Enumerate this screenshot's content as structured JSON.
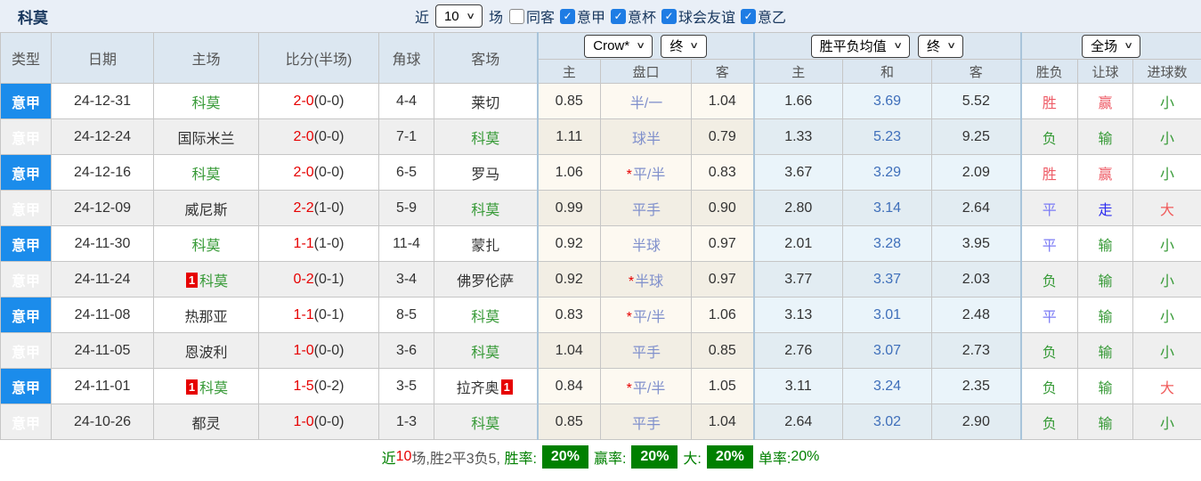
{
  "header": {
    "title": "科莫",
    "filter": {
      "near_label": "近",
      "matches_value": "10",
      "matches_suffix": "场",
      "checkboxes": [
        {
          "label": "同客",
          "checked": false
        },
        {
          "label": "意甲",
          "checked": true
        },
        {
          "label": "意杯",
          "checked": true
        },
        {
          "label": "球会友谊",
          "checked": true
        },
        {
          "label": "意乙",
          "checked": true
        }
      ]
    }
  },
  "table": {
    "columns": [
      "类型",
      "日期",
      "主场",
      "比分(半场)",
      "角球",
      "客场"
    ],
    "selects": {
      "company": "Crow*",
      "company_time": "终",
      "avg": "胜平负均值",
      "avg_time": "终",
      "scope": "全场"
    },
    "sub_headers": [
      "主",
      "盘口",
      "客",
      "主",
      "和",
      "客",
      "胜负",
      "让球",
      "进球数"
    ],
    "rows": [
      {
        "league": "意甲",
        "date": "24-12-31",
        "home": "科莫",
        "home_badge": "",
        "score": "2-0",
        "half": "(0-0)",
        "corners": "4-4",
        "away": "莱切",
        "away_badge": "",
        "crow_home": "0.85",
        "handicap_star": false,
        "handicap": "半/一",
        "crow_away": "1.04",
        "avg_home": "1.66",
        "avg_draw": "3.69",
        "avg_away": "5.52",
        "result": "胜",
        "handicap_result": "赢",
        "goals_result": "小"
      },
      {
        "league": "意甲",
        "date": "24-12-24",
        "home": "国际米兰",
        "home_badge": "",
        "score": "2-0",
        "half": "(0-0)",
        "corners": "7-1",
        "away": "科莫",
        "away_badge": "",
        "crow_home": "1.11",
        "handicap_star": false,
        "handicap": "球半",
        "crow_away": "0.79",
        "avg_home": "1.33",
        "avg_draw": "5.23",
        "avg_away": "9.25",
        "result": "负",
        "handicap_result": "输",
        "goals_result": "小"
      },
      {
        "league": "意甲",
        "date": "24-12-16",
        "home": "科莫",
        "home_badge": "",
        "score": "2-0",
        "half": "(0-0)",
        "corners": "6-5",
        "away": "罗马",
        "away_badge": "",
        "crow_home": "1.06",
        "handicap_star": true,
        "handicap": "平/半",
        "crow_away": "0.83",
        "avg_home": "3.67",
        "avg_draw": "3.29",
        "avg_away": "2.09",
        "result": "胜",
        "handicap_result": "赢",
        "goals_result": "小"
      },
      {
        "league": "意甲",
        "date": "24-12-09",
        "home": "威尼斯",
        "home_badge": "",
        "score": "2-2",
        "half": "(1-0)",
        "corners": "5-9",
        "away": "科莫",
        "away_badge": "",
        "crow_home": "0.99",
        "handicap_star": false,
        "handicap": "平手",
        "crow_away": "0.90",
        "avg_home": "2.80",
        "avg_draw": "3.14",
        "avg_away": "2.64",
        "result": "平",
        "handicap_result": "走",
        "goals_result": "大"
      },
      {
        "league": "意甲",
        "date": "24-11-30",
        "home": "科莫",
        "home_badge": "",
        "score": "1-1",
        "half": "(1-0)",
        "corners": "11-4",
        "away": "蒙扎",
        "away_badge": "",
        "crow_home": "0.92",
        "handicap_star": false,
        "handicap": "半球",
        "crow_away": "0.97",
        "avg_home": "2.01",
        "avg_draw": "3.28",
        "avg_away": "3.95",
        "result": "平",
        "handicap_result": "输",
        "goals_result": "小"
      },
      {
        "league": "意甲",
        "date": "24-11-24",
        "home": "科莫",
        "home_badge": "1",
        "score": "0-2",
        "half": "(0-1)",
        "corners": "3-4",
        "away": "佛罗伦萨",
        "away_badge": "",
        "crow_home": "0.92",
        "handicap_star": true,
        "handicap": "半球",
        "crow_away": "0.97",
        "avg_home": "3.77",
        "avg_draw": "3.37",
        "avg_away": "2.03",
        "result": "负",
        "handicap_result": "输",
        "goals_result": "小"
      },
      {
        "league": "意甲",
        "date": "24-11-08",
        "home": "热那亚",
        "home_badge": "",
        "score": "1-1",
        "half": "(0-1)",
        "corners": "8-5",
        "away": "科莫",
        "away_badge": "",
        "crow_home": "0.83",
        "handicap_star": true,
        "handicap": "平/半",
        "crow_away": "1.06",
        "avg_home": "3.13",
        "avg_draw": "3.01",
        "avg_away": "2.48",
        "result": "平",
        "handicap_result": "输",
        "goals_result": "小"
      },
      {
        "league": "意甲",
        "date": "24-11-05",
        "home": "恩波利",
        "home_badge": "",
        "score": "1-0",
        "half": "(0-0)",
        "corners": "3-6",
        "away": "科莫",
        "away_badge": "",
        "crow_home": "1.04",
        "handicap_star": false,
        "handicap": "平手",
        "crow_away": "0.85",
        "avg_home": "2.76",
        "avg_draw": "3.07",
        "avg_away": "2.73",
        "result": "负",
        "handicap_result": "输",
        "goals_result": "小"
      },
      {
        "league": "意甲",
        "date": "24-11-01",
        "home": "科莫",
        "home_badge": "1",
        "score": "1-5",
        "half": "(0-2)",
        "corners": "3-5",
        "away": "拉齐奥",
        "away_badge": "1",
        "crow_home": "0.84",
        "handicap_star": true,
        "handicap": "平/半",
        "crow_away": "1.05",
        "avg_home": "3.11",
        "avg_draw": "3.24",
        "avg_away": "2.35",
        "result": "负",
        "handicap_result": "输",
        "goals_result": "大"
      },
      {
        "league": "意甲",
        "date": "24-10-26",
        "home": "都灵",
        "home_badge": "",
        "score": "1-0",
        "half": "(0-0)",
        "corners": "1-3",
        "away": "科莫",
        "away_badge": "",
        "crow_home": "0.85",
        "handicap_star": false,
        "handicap": "平手",
        "crow_away": "1.04",
        "avg_home": "2.64",
        "avg_draw": "3.02",
        "avg_away": "2.90",
        "result": "负",
        "handicap_result": "输",
        "goals_result": "小"
      }
    ]
  },
  "footer": {
    "prefix": "近",
    "count": "10",
    "suffix": "场,胜2平3负5, ",
    "win_rate_label": "胜率:",
    "win_rate": "20%",
    "asian_rate_label": "赢率:",
    "asian_rate": "20%",
    "big_label": "大:",
    "big_rate": "20%",
    "single_label": "单率:",
    "single_rate": "20%"
  },
  "colors": {
    "navy": "#17365d",
    "checkbox_blue": "#1e7ce4",
    "league_bg": "#1b8ceb",
    "score_red": "#e60000",
    "card_red": "#e60000",
    "como_green": "#379a37",
    "team_dark": "#333333",
    "handicap_blue": "#8090cc",
    "avg_draw_blue": "#3f6fba",
    "win": "#ee5b66",
    "draw": "#7b7bf5",
    "lose": "#379a37",
    "give_return": "#2d2df0",
    "big": "#f05b5b",
    "small": "#379a37",
    "footer_green": "#008000",
    "badge_bg": "#008000",
    "count_red": "#e60000"
  }
}
